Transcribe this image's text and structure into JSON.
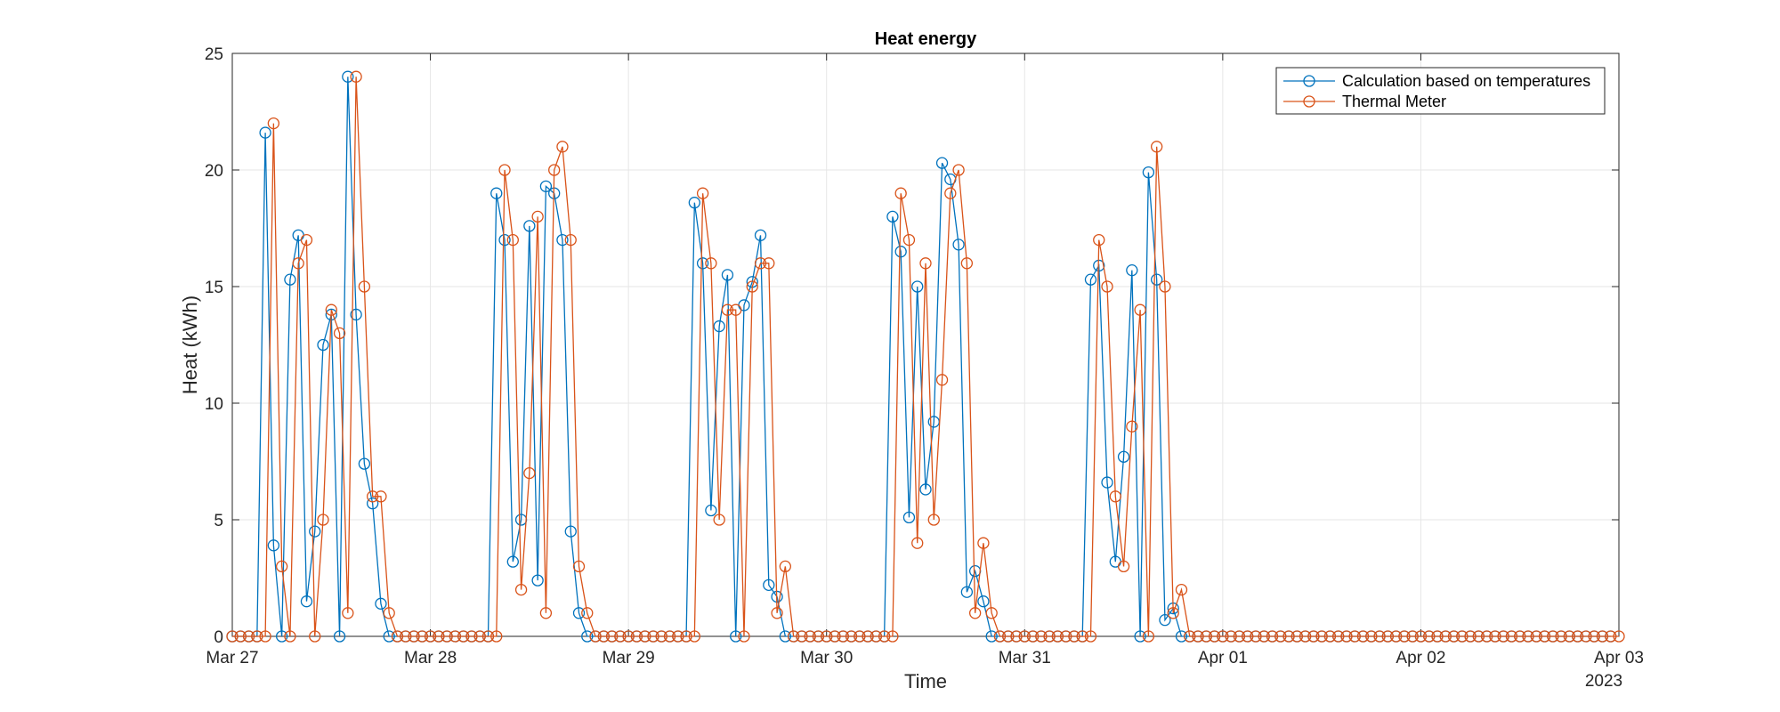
{
  "chart_data": {
    "type": "line",
    "title": "Heat energy",
    "xlabel": "Time",
    "ylabel": "Heat (kWh)",
    "year_label": "2023",
    "x_tick_labels": [
      "Mar 27",
      "Mar 28",
      "Mar 29",
      "Mar 30",
      "Mar 31",
      "Apr 01",
      "Apr 02",
      "Apr 03"
    ],
    "x_range": [
      "2023-03-27 00:00",
      "2023-04-03 00:00"
    ],
    "x_sample_interval_hours": 1,
    "ylim": [
      0,
      25
    ],
    "y_ticks": [
      0,
      5,
      10,
      15,
      20,
      25
    ],
    "grid": true,
    "legend_position": "top-right",
    "marker": "circle",
    "series": [
      {
        "name": "Calculation based on temperatures",
        "color": "#0072BD",
        "values": [
          0,
          0,
          0,
          0,
          21.6,
          3.9,
          0,
          15.3,
          17.2,
          1.5,
          4.5,
          12.5,
          13.8,
          0,
          24,
          13.8,
          7.4,
          5.7,
          1.4,
          0,
          0,
          0,
          0,
          0,
          0,
          0,
          0,
          0,
          0,
          0,
          0,
          0,
          19,
          17,
          3.2,
          5,
          17.6,
          2.4,
          19.3,
          19,
          17,
          4.5,
          1,
          0,
          0,
          0,
          0,
          0,
          0,
          0,
          0,
          0,
          0,
          0,
          0,
          0,
          18.6,
          16,
          5.4,
          13.3,
          15.5,
          0,
          14.2,
          15.2,
          17.2,
          2.2,
          1.7,
          0,
          0,
          0,
          0,
          0,
          0,
          0,
          0,
          0,
          0,
          0,
          0,
          0,
          18,
          16.5,
          5.1,
          15,
          6.3,
          9.2,
          20.3,
          19.6,
          16.8,
          1.9,
          2.8,
          1.5,
          0,
          0,
          0,
          0,
          0,
          0,
          0,
          0,
          0,
          0,
          0,
          0,
          15.3,
          15.9,
          6.6,
          3.2,
          7.7,
          15.7,
          0,
          19.9,
          15.3,
          0.7,
          1.2,
          0,
          0,
          0,
          0,
          0,
          0,
          0,
          0,
          0,
          0,
          0,
          0,
          0,
          0,
          0,
          0,
          0,
          0,
          0,
          0,
          0,
          0,
          0,
          0,
          0,
          0,
          0,
          0,
          0,
          0,
          0,
          0,
          0,
          0,
          0,
          0,
          0,
          0,
          0,
          0,
          0,
          0,
          0,
          0,
          0,
          0,
          0,
          0,
          0,
          0,
          0,
          0,
          0
        ]
      },
      {
        "name": "Thermal Meter",
        "color": "#D95319",
        "values": [
          0,
          0,
          0,
          0,
          0,
          22,
          3,
          0,
          16,
          17,
          0,
          5,
          14,
          13,
          1,
          24,
          15,
          6,
          6,
          1,
          0,
          0,
          0,
          0,
          0,
          0,
          0,
          0,
          0,
          0,
          0,
          0,
          0,
          20,
          17,
          2,
          7,
          18,
          1,
          20,
          21,
          17,
          3,
          1,
          0,
          0,
          0,
          0,
          0,
          0,
          0,
          0,
          0,
          0,
          0,
          0,
          0,
          19,
          16,
          5,
          14,
          14,
          0,
          15,
          16,
          16,
          1,
          3,
          0,
          0,
          0,
          0,
          0,
          0,
          0,
          0,
          0,
          0,
          0,
          0,
          0,
          19,
          17,
          4,
          16,
          5,
          11,
          19,
          20,
          16,
          1,
          4,
          1,
          0,
          0,
          0,
          0,
          0,
          0,
          0,
          0,
          0,
          0,
          0,
          0,
          17,
          15,
          6,
          3,
          9,
          14,
          0,
          21,
          15,
          1,
          2,
          0,
          0,
          0,
          0,
          0,
          0,
          0,
          0,
          0,
          0,
          0,
          0,
          0,
          0,
          0,
          0,
          0,
          0,
          0,
          0,
          0,
          0,
          0,
          0,
          0,
          0,
          0,
          0,
          0,
          0,
          0,
          0,
          0,
          0,
          0,
          0,
          0,
          0,
          0,
          0,
          0,
          0,
          0,
          0,
          0,
          0,
          0,
          0,
          0,
          0,
          0,
          0,
          0
        ]
      }
    ]
  }
}
